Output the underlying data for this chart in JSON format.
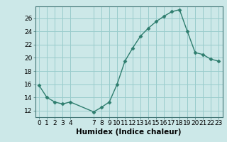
{
  "x": [
    0,
    1,
    2,
    3,
    4,
    7,
    8,
    9,
    10,
    11,
    12,
    13,
    14,
    15,
    16,
    17,
    18,
    19,
    20,
    21,
    22,
    23
  ],
  "y": [
    15.8,
    14.0,
    13.3,
    13.0,
    13.3,
    11.8,
    12.5,
    13.3,
    16.0,
    19.5,
    21.5,
    23.3,
    24.5,
    25.5,
    26.3,
    27.0,
    27.3,
    24.0,
    20.8,
    20.5,
    19.8,
    19.5
  ],
  "line_color": "#2e7d6e",
  "marker_color": "#2e7d6e",
  "bg_color": "#cce8e8",
  "grid_color": "#99cccc",
  "xlabel": "Humidex (Indice chaleur)",
  "ylabel_ticks": [
    12,
    14,
    16,
    18,
    20,
    22,
    24,
    26
  ],
  "ylim": [
    11.0,
    27.8
  ],
  "xlim": [
    -0.5,
    23.5
  ],
  "xticks": [
    0,
    1,
    2,
    3,
    4,
    7,
    8,
    9,
    10,
    11,
    12,
    13,
    14,
    15,
    16,
    17,
    18,
    19,
    20,
    21,
    22,
    23
  ],
  "xtick_labels": [
    "0",
    "1",
    "2",
    "3",
    "4",
    "7",
    "8",
    "9",
    "10",
    "11",
    "12",
    "13",
    "14",
    "15",
    "16",
    "17",
    "18",
    "19",
    "20",
    "21",
    "22",
    "23"
  ],
  "font_size_axis": 6.5,
  "font_size_xlabel": 7.5
}
